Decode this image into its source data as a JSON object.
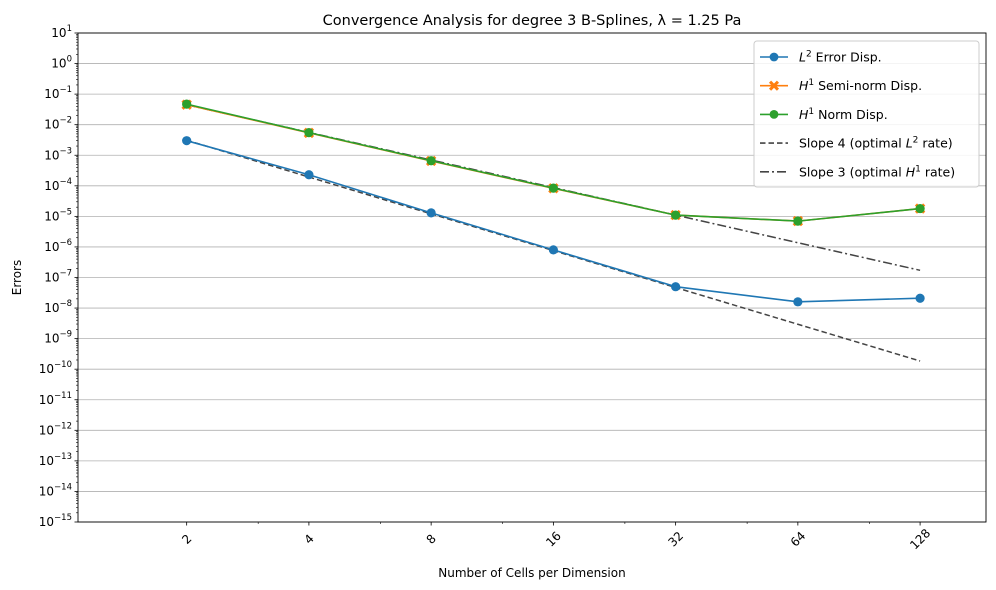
{
  "chart_data": {
    "type": "line",
    "title": "Convergence Analysis for degree 3 B-Splines, λ = 1.25 Pa",
    "xlabel": "Number of Cells per Dimension",
    "ylabel": "Errors",
    "x_scale": "log2",
    "y_scale": "log10",
    "xlim": [
      1.08,
      186
    ],
    "ylim": [
      1e-15,
      10
    ],
    "x_ticks": [
      2,
      4,
      8,
      16,
      32,
      64,
      128
    ],
    "y_ticks_exponents": [
      -15,
      -14,
      -13,
      -12,
      -11,
      -10,
      -9,
      -8,
      -7,
      -6,
      -5,
      -4,
      -3,
      -2,
      -1,
      0,
      1
    ],
    "grid": "horizontal",
    "legend_position": "top-right",
    "x": [
      2,
      4,
      8,
      16,
      32,
      64,
      128
    ],
    "series": [
      {
        "name": "Error Disp.",
        "norm": "L",
        "exp": "2",
        "style": "solid",
        "marker": "circle",
        "color": "#1f77b4",
        "values": [
          0.003,
          0.00023,
          1.3e-05,
          8e-07,
          5e-08,
          1.6e-08,
          2.1e-08
        ]
      },
      {
        "name": "Semi-norm Disp.",
        "norm": "H",
        "exp": "1",
        "style": "solid",
        "marker": "x",
        "color": "#ff7f0e",
        "values": [
          0.045,
          0.0054,
          0.00065,
          8.3e-05,
          1.1e-05,
          7e-06,
          1.8e-05
        ]
      },
      {
        "name": "Norm Disp.",
        "norm": "H",
        "exp": "1",
        "style": "solid",
        "marker": "circle",
        "color": "#2ca02c",
        "values": [
          0.047,
          0.0055,
          0.00066,
          8.4e-05,
          1.1e-05,
          7e-06,
          1.8e-05
        ]
      },
      {
        "name_pre": "Slope 4 (optimal ",
        "norm": "L",
        "exp": "2",
        "name_post": " rate)",
        "style": "dashed",
        "marker": "none",
        "color": "#444444",
        "values": [
          0.0031,
          0.000194,
          1.21e-05,
          7.6e-07,
          4.7e-08,
          2.95e-09,
          1.85e-10
        ]
      },
      {
        "name_pre": "Slope 3 (optimal ",
        "norm": "H",
        "exp": "1",
        "name_post": " rate)",
        "style": "dashdot",
        "marker": "none",
        "color": "#444444",
        "values": [
          0.045,
          0.0056,
          0.0007,
          8.8e-05,
          1.1e-05,
          1.37e-06,
          1.72e-07
        ]
      }
    ]
  }
}
